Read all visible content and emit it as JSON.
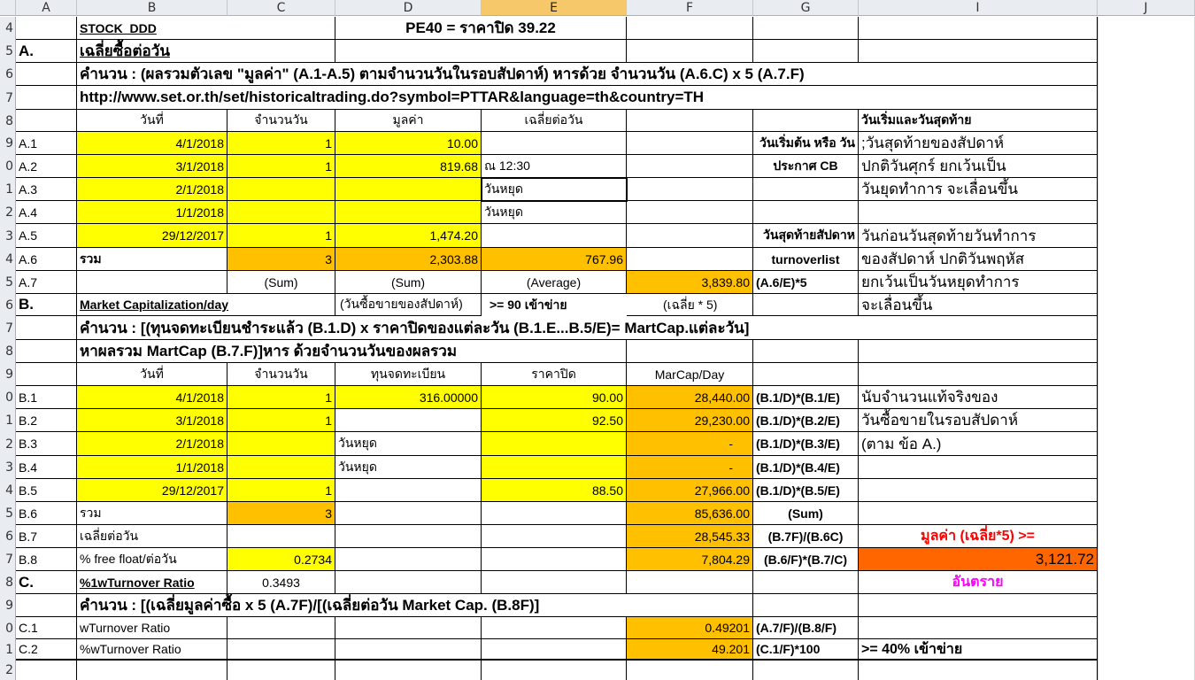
{
  "columns": [
    "A",
    "B",
    "C",
    "D",
    "E",
    "F",
    "G",
    "I",
    "J"
  ],
  "selected_column": "E",
  "rows": [
    "4",
    "5",
    "6",
    "7",
    "8",
    "9",
    "0",
    "1",
    "2",
    "3",
    "4",
    "5",
    "6",
    "7",
    "8",
    "9",
    "0",
    "1",
    "2",
    "3",
    "4",
    "5",
    "6",
    "7",
    "8",
    "9",
    "0",
    "1",
    "2"
  ],
  "r4": {
    "b": "STOCK_DDD",
    "title": "PE40 = ราคาปิด 39.22"
  },
  "r5": {
    "a": "A.",
    "b": "เฉลี่ยซื้อต่อวัน"
  },
  "r6": {
    "b": "คำนวน : (ผลรวมตัวเลข \"มูลค่า\" (A.1-A.5) ตามจำนวนวันในรอบสัปดาห์) หารด้วย จำนวนวัน (A.6.C) x 5 (A.7.F)"
  },
  "r7": {
    "b": "http://www.set.or.th/set/historicaltrading.do?symbol=PTTAR&language=th&country=TH"
  },
  "r8": {
    "b": "วันที่",
    "c": "จำนวนวัน",
    "d": "มูลค่า",
    "e": "เฉลี่ยต่อวัน",
    "i": "วันเริ่มและวันสุดท้าย"
  },
  "r9": {
    "a": "A.1",
    "b": "4/1/2018",
    "c": "1",
    "d": "10.00",
    "g": "วันเริ่มต้น หรือ วัน",
    "i": ";วันสุดท้ายของสัปดาห์"
  },
  "r10": {
    "a": "A.2",
    "b": "3/1/2018",
    "c": "1",
    "d": "819.68",
    "e": "ณ 12:30",
    "g": "ประกาศ CB",
    "i": "ปกติวันศุกร์ ยกเว้นเป็น"
  },
  "r11": {
    "a": "A.3",
    "b": "2/1/2018",
    "e": "วันหยุด",
    "i": "วันยุดทำการ จะเลื่อนขึ้น"
  },
  "r12": {
    "a": "A.4",
    "b": "1/1/2018",
    "e": "วันหยุด"
  },
  "r13": {
    "a": "A.5",
    "b": "29/12/2017",
    "c": "1",
    "d": "1,474.20",
    "g": "วันสุดท้ายสัปดาห",
    "i": "วันก่อนวันสุดท้ายวันทำการ"
  },
  "r14": {
    "a": "A.6",
    "b": "รวม",
    "c": "3",
    "d": "2,303.88",
    "e": "767.96",
    "g": "turnoverlist",
    "i": "ของสัปดาห์ ปกติวันพฤหัส"
  },
  "r15": {
    "a": "A.7",
    "c": "(Sum)",
    "d": "(Sum)",
    "e": "(Average)",
    "f": "3,839.80",
    "g": "(A.6/E)*5",
    "i": "ยกเว้นเป็นวันหยุดทำการ"
  },
  "r16": {
    "a": "B.",
    "b": "Market Capitalization/day",
    "d": "(วันซื้อขายของสัปดาห์)",
    "d2": ">= 90 เข้าข่าย",
    "e": "(เฉลี่ย * 5)",
    "i": "จะเลื่อนขึ้น"
  },
  "r17": {
    "b": "คำนวน :  [(ทุนจดทะเบียนชำระแล้ว (B.1.D) x ราคาปิดของแต่ละวัน (B.1.E...B.5/E)= MartCap.แต่ละวัน]"
  },
  "r18": {
    "b": "หาผลรวม MartCap (B.7.F)]หาร ด้วยจำนวนวันของผลรวม"
  },
  "r19": {
    "b": "วันที่",
    "c": "จำนวนวัน",
    "d": "ทุนจดทะเบียน",
    "e": "ราคาปิด",
    "f": "MarCap/Day"
  },
  "r20": {
    "a": "B.1",
    "b": "4/1/2018",
    "c": "1",
    "d": "316.00000",
    "e": "90.00",
    "f": "28,440.00",
    "g": "(B.1/D)*(B.1/E)",
    "i": "นับจำนวนแท้จริงของ"
  },
  "r21": {
    "a": "B.2",
    "b": "3/1/2018",
    "c": "1",
    "e": "92.50",
    "f": "29,230.00",
    "g": "(B.1/D)*(B.2/E)",
    "i": "วันซื้อขายในรอบสัปดาห์"
  },
  "r22": {
    "a": "B.3",
    "b": "2/1/2018",
    "d": "วันหยุด",
    "f": "-",
    "g": "(B.1/D)*(B.3/E)",
    "i": "(ตาม ข้อ A.)"
  },
  "r23": {
    "a": "B.4",
    "b": "1/1/2018",
    "d": "วันหยุด",
    "f": "-",
    "g": "(B.1/D)*(B.4/E)"
  },
  "r24": {
    "a": "B.5",
    "b": "29/12/2017",
    "c": "1",
    "e": "88.50",
    "f": "27,966.00",
    "g": "(B.1/D)*(B.5/E)"
  },
  "r25": {
    "a": "B.6",
    "b": "รวม",
    "c": "3",
    "f": "85,636.00",
    "g": "(Sum)"
  },
  "r26": {
    "a": "B.7",
    "b": "เฉลี่ยต่อวัน",
    "f": "28,545.33",
    "g": "(B.7F)/(B.6C)",
    "i": "มูลค่า (เฉลี่ย*5) >="
  },
  "r27": {
    "a": "B.8",
    "b": "% free float/ต่อวัน",
    "c": "0.2734",
    "f": "7,804.29",
    "g": "(B.6/F)*(B.7/C)",
    "i": "3,121.72"
  },
  "r28": {
    "a": "C.",
    "b": "%1wTurnover Ratio",
    "c": "0.3493",
    "i": "อันตราย"
  },
  "r29": {
    "b": "คำนวน :  [(เฉลี่ยมูลค่าซื้อ x 5  (A.7F)/[(เฉลี่ยต่อวัน Market Cap. (B.8F)]"
  },
  "r30": {
    "a": "C.1",
    "b": "wTurnover Ratio",
    "f": "0.49201",
    "g": "(A.7/F)/(B.8/F)"
  },
  "r31": {
    "a": "C.2",
    "b": " %wTurnover Ratio",
    "f": "49.201",
    "g": "(C.1/F)*100",
    "i": ">= 40% เข้าข่าย"
  },
  "colors": {
    "yellow": "#ffff00",
    "orange": "#ffc000",
    "red_orange": "#ff6600",
    "warn_text": "#ff0000",
    "danger_text": "#ff00ff"
  }
}
